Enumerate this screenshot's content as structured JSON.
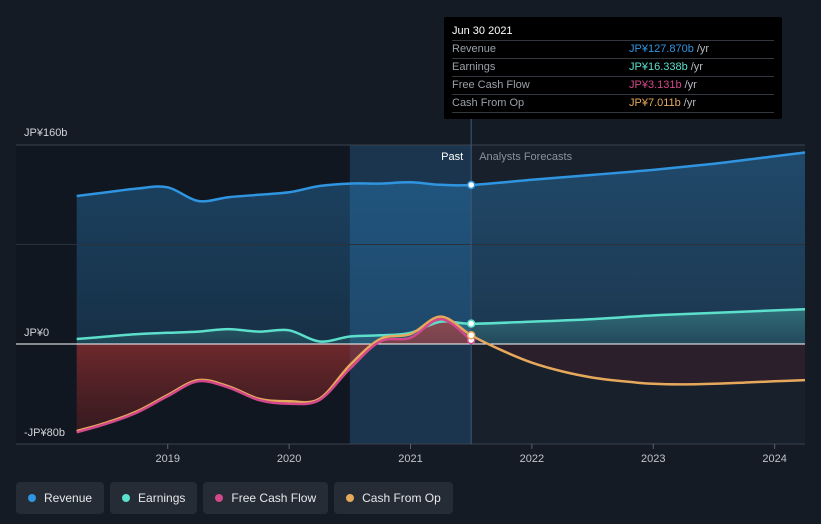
{
  "chart_data": {
    "type": "line",
    "currency_unit": "JP¥ billions",
    "y_axis_labels": [
      "JP¥160b",
      "JP¥0",
      "-JP¥80b"
    ],
    "ylim": [
      -80,
      160
    ],
    "x_tick_labels": [
      "2019",
      "2020",
      "2021",
      "2022",
      "2023",
      "2024"
    ],
    "x_ticks": [
      2019.0,
      2020.0,
      2021.0,
      2022.0,
      2023.0,
      2024.0
    ],
    "xlim": [
      2017.75,
      2024.25
    ],
    "past_label": "Past",
    "forecast_label": "Analysts Forecasts",
    "past_start": 2020.5,
    "divider": 2021.5,
    "series": [
      {
        "name": "Revenue",
        "color": "#2f95e0",
        "x": [
          2018.25,
          2018.5,
          2018.75,
          2019.0,
          2019.25,
          2019.5,
          2019.75,
          2020.0,
          2020.25,
          2020.5,
          2020.75,
          2021.0,
          2021.25,
          2021.5,
          2022.0,
          2022.5,
          2023.0,
          2023.5,
          2024.0,
          2024.25
        ],
        "values": [
          119,
          122,
          125,
          126,
          115,
          118,
          120,
          122,
          127,
          129,
          129,
          130,
          128,
          127.87,
          132,
          136,
          140,
          145,
          151,
          154
        ]
      },
      {
        "name": "Earnings",
        "color": "#5cdfcb",
        "x": [
          2018.25,
          2018.5,
          2018.75,
          2019.0,
          2019.25,
          2019.5,
          2019.75,
          2020.0,
          2020.25,
          2020.5,
          2020.75,
          2021.0,
          2021.25,
          2021.5,
          2022.0,
          2022.5,
          2023.0,
          2023.5,
          2024.0,
          2024.25
        ],
        "values": [
          4,
          6,
          8,
          9,
          10,
          12,
          10,
          11,
          2,
          6,
          7,
          9,
          18,
          16.338,
          18,
          20,
          23,
          25,
          27,
          28
        ]
      },
      {
        "name": "Free Cash Flow",
        "color": "#d2488a",
        "x": [
          2018.25,
          2018.5,
          2018.75,
          2019.0,
          2019.25,
          2019.5,
          2019.75,
          2020.0,
          2020.25,
          2020.5,
          2020.75,
          2021.0,
          2021.25,
          2021.5
        ],
        "values": [
          -71,
          -64,
          -55,
          -42,
          -30,
          -35,
          -45,
          -48,
          -45,
          -20,
          2,
          5,
          20,
          3.131
        ]
      },
      {
        "name": "Cash From Op",
        "color": "#e6a95c",
        "x": [
          2018.25,
          2018.5,
          2018.75,
          2019.0,
          2019.25,
          2019.5,
          2019.75,
          2020.0,
          2020.25,
          2020.5,
          2020.75,
          2021.0,
          2021.25,
          2021.5,
          2021.75,
          2022.0,
          2022.25,
          2022.5,
          2022.75,
          2023.0,
          2023.25,
          2023.5,
          2023.75,
          2024.0,
          2024.25
        ],
        "values": [
          -70,
          -63,
          -54,
          -41,
          -29,
          -34,
          -44,
          -46,
          -44,
          -17,
          4,
          8,
          22,
          7.011,
          -5,
          -15,
          -22,
          -27,
          -30,
          -32,
          -32.5,
          -32,
          -31,
          -30,
          -29
        ]
      }
    ],
    "tooltip": {
      "date": "Jun 30 2021",
      "rows": [
        {
          "label": "Revenue",
          "value": "JP¥127.870b",
          "unit": "/yr",
          "color": "#2f95e0"
        },
        {
          "label": "Earnings",
          "value": "JP¥16.338b",
          "unit": "/yr",
          "color": "#5cdfcb"
        },
        {
          "label": "Free Cash Flow",
          "value": "JP¥3.131b",
          "unit": "/yr",
          "color": "#d2488a"
        },
        {
          "label": "Cash From Op",
          "value": "JP¥7.011b",
          "unit": "/yr",
          "color": "#e6a95c"
        }
      ]
    }
  },
  "legend": [
    {
      "label": "Revenue",
      "color": "#2f95e0"
    },
    {
      "label": "Earnings",
      "color": "#5cdfcb"
    },
    {
      "label": "Free Cash Flow",
      "color": "#d2488a"
    },
    {
      "label": "Cash From Op",
      "color": "#e6a95c"
    }
  ]
}
